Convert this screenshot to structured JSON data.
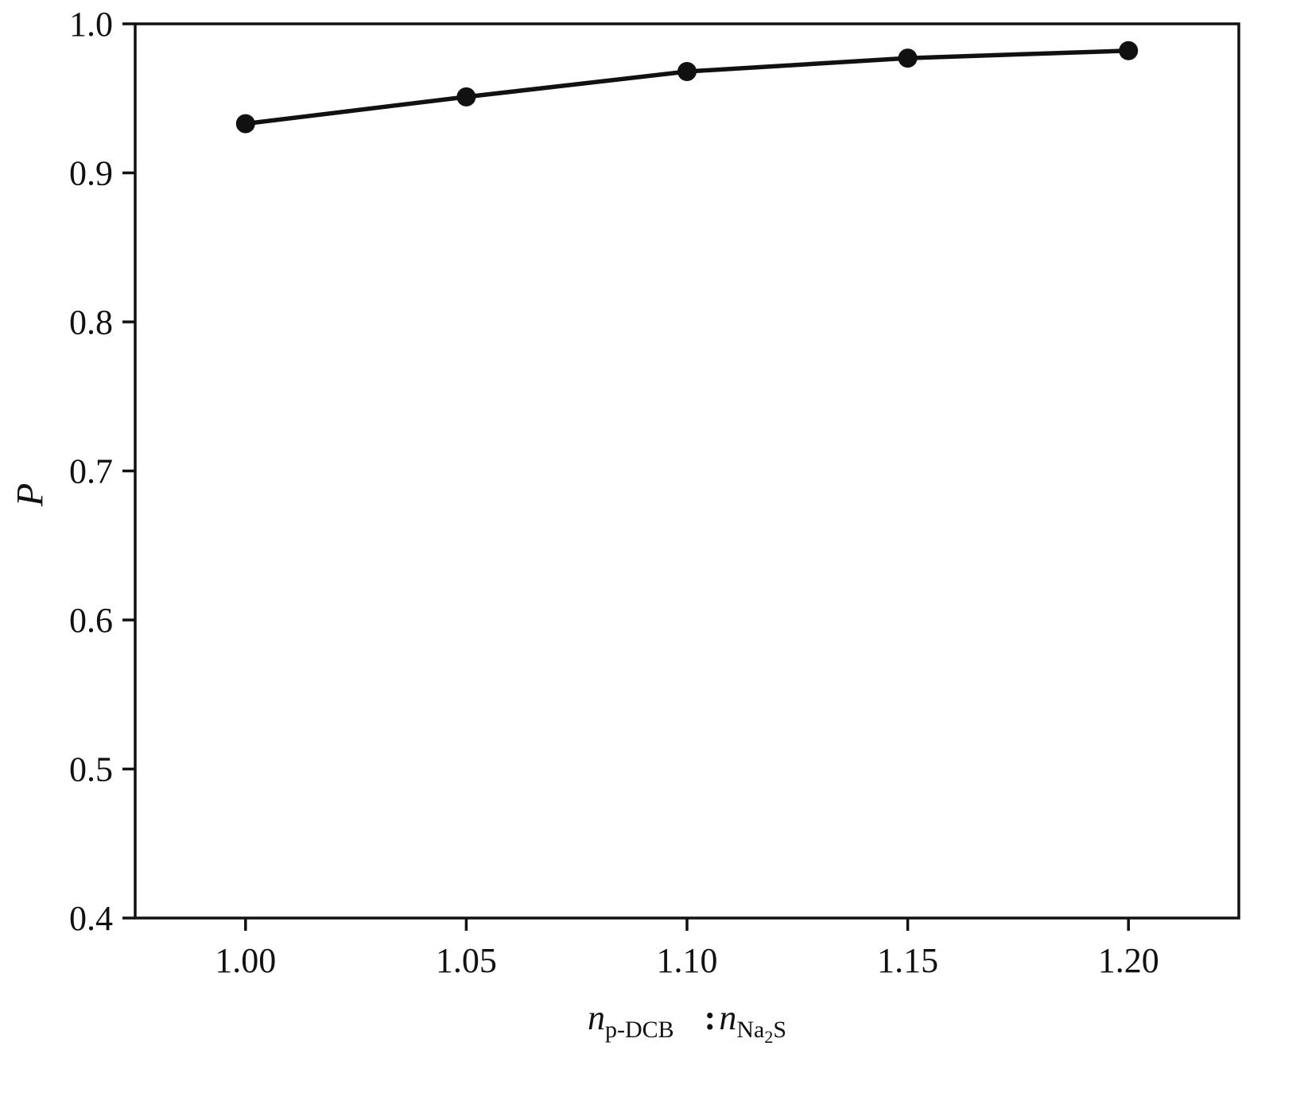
{
  "chart_data": {
    "type": "line",
    "title": "",
    "ylabel": "P",
    "xlabel": {
      "n1": "n",
      "sub1": "p-DCB",
      "colon": ":",
      "n2": "n",
      "sub2a": "Na",
      "sub2b": "2",
      "sub2c": "S"
    },
    "x": [
      1.0,
      1.05,
      1.1,
      1.15,
      1.2
    ],
    "y": [
      0.933,
      0.951,
      0.968,
      0.977,
      0.982
    ],
    "xlim": [
      0.975,
      1.225
    ],
    "ylim": [
      0.4,
      1.0
    ],
    "x_ticks": [
      1.0,
      1.05,
      1.1,
      1.15,
      1.2
    ],
    "x_tick_labels": [
      "1.00",
      "1.05",
      "1.10",
      "1.15",
      "1.20"
    ],
    "y_ticks": [
      0.4,
      0.5,
      0.6,
      0.7,
      0.8,
      0.9,
      1.0
    ],
    "y_tick_labels": [
      "0.4",
      "0.5",
      "0.6",
      "0.7",
      "0.8",
      "0.9",
      "1.0"
    ],
    "grid": false,
    "legend": false,
    "line_color": "#111111",
    "marker": "filled-circle"
  }
}
